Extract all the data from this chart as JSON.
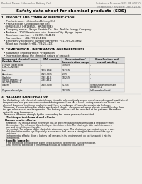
{
  "bg_color": "#f0ede8",
  "header_top_left": "Product Name: Lithium Ion Battery Cell",
  "header_top_right": "Substance Number: SDS-LIB-00010\nEstablished / Revision: Dec.7.2016",
  "main_title": "Safety data sheet for chemical products (SDS)",
  "section1_title": "1. PRODUCT AND COMPANY IDENTIFICATION",
  "section1_lines": [
    "  • Product name: Lithium Ion Battery Cell",
    "  • Product code: Cylindrical-type cell",
    "    (IHR18650U, IHR18650L, IHR18650A)",
    "  • Company name:   Sanyo Electric Co., Ltd.  Mobile Energy Company",
    "  • Address:   2001 Kamionaka-cho, Sumoto City, Hyogo, Japan",
    "  • Telephone number:   +81-799-26-4111",
    "  • Fax number:   +81-799-26-4131",
    "  • Emergency telephone number (daytime): +81-799-26-3962",
    "    (Night and holiday): +81-799-26-4131"
  ],
  "section2_title": "2. COMPOSITION / INFORMATION ON INGREDIENTS",
  "section2_sub": "  • Substance or preparation: Preparation",
  "section2_sub2": "  • Information about the chemical nature of product:",
  "table_col0_header": "Component chemical name",
  "table_col0_subheader": "Generic Name",
  "table_col1_header": "CAS number",
  "table_col2_header": "Concentration /\nConcentration range",
  "table_col3_header": "Classification and\nhazard labeling",
  "table_rows": [
    [
      "Lithium cobalt oxide\n(LiMn-Co-Ni(O4))",
      "-",
      "30-60%",
      "-"
    ],
    [
      "Iron",
      "7439-89-6",
      "15-25%",
      "-"
    ],
    [
      "Aluminum",
      "7429-90-5",
      "2-6%",
      "-"
    ],
    [
      "Graphite\n(Mixed graphite-1)\n(Al-Mn graphite-1)",
      "7782-42-5\n7782-43-2",
      "10-25%",
      "-"
    ],
    [
      "Copper",
      "7440-50-8",
      "5-15%",
      "Sensitization of the skin\ngroup No.2"
    ],
    [
      "Organic electrolyte",
      "-",
      "10-20%",
      "Inflammable liquid"
    ]
  ],
  "section3_title": "3. HAZARDS IDENTIFICATION",
  "section3_lines": [
    "  For the battery cell, chemical materials are stored in a hermetically sealed metal case, designed to withstand",
    "  temperatures and pressures encountered during normal use. As a result, during normal use, there is no",
    "  physical danger of ignition or explosion and there is no danger of hazardous materials leakage.",
    "    However, if exposed to a fire, added mechanical shocks, decomposed, when electric current forcibly flows,",
    "  the gas release vent can be operated. The battery cell case will be breached at fire-patterns. Hazardous",
    "  materials may be released.",
    "    Moreover, if heated strongly by the surrounding fire, some gas may be emitted."
  ],
  "section3_b1": "  • Most important hazard and effects:",
  "section3_human": "    Human health effects:",
  "section3_human_lines": [
    "      Inhalation: The release of the electrolyte has an anesthesia action and stimulates a respiratory tract.",
    "      Skin contact: The release of the electrolyte stimulates a skin. The electrolyte skin contact causes a",
    "      sore and stimulation on the skin.",
    "      Eye contact: The release of the electrolyte stimulates eyes. The electrolyte eye contact causes a sore",
    "      and stimulation on the eye. Especially, a substance that causes a strong inflammation of the eye is",
    "      contained.",
    "      Environmental effects: Since a battery cell remains in the environment, do not throw out it into the",
    "      environment."
  ],
  "section3_b2": "  • Specific hazards:",
  "section3_specific_lines": [
    "      If the electrolyte contacts with water, it will generate detrimental hydrogen fluoride.",
    "      Since the neat electrolyte is inflammable liquid, do not bring close to fire."
  ]
}
